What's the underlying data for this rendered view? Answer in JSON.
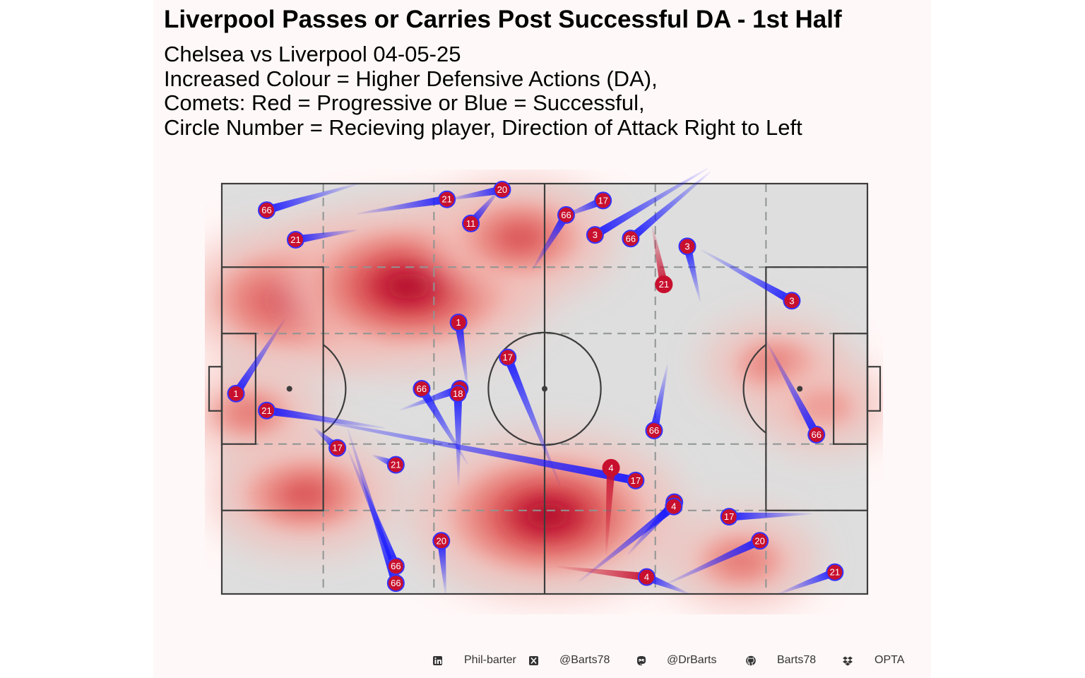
{
  "title": "Liverpool Passes or Carries Post Successful DA - 1st Half",
  "subtitle_lines": [
    "Chelsea vs Liverpool 04-05-25",
    "Increased Colour = Higher Defensive Actions (DA),",
    "Comets: Red = Progressive or Blue = Successful,",
    "Circle Number = Recieving player, Direction of Attack Right to Left"
  ],
  "caption": {
    "linkedin": "Phil-barter",
    "x": "@Barts78",
    "mastodon": "@DrBarts",
    "github": "Barts78",
    "source": "OPTA"
  },
  "colors": {
    "panel": "#fff8f8",
    "pitch": "#dedede",
    "density_low": "#f2b6b0",
    "density_high": "#b5112f",
    "comet_successful": "#1a1aff",
    "comet_progressive": "#c8102e",
    "receiver_fill": "#c8102e",
    "receiver_ring": "#3333ff"
  },
  "chart_data": {
    "type": "scatter",
    "pitch": {
      "length": 105,
      "width": 68,
      "direction_of_attack": "right-to-left"
    },
    "density_hotspots": [
      {
        "x": 12.0,
        "y": 48.7,
        "level": 0.8
      },
      {
        "x": 30.4,
        "y": 51.0,
        "level": 1.0
      },
      {
        "x": 53.0,
        "y": 13.0,
        "level": 1.0
      },
      {
        "x": 13.5,
        "y": 16.5,
        "level": 0.55
      },
      {
        "x": 48.5,
        "y": 59.0,
        "level": 0.55
      },
      {
        "x": 84.5,
        "y": 5.5,
        "level": 0.35
      },
      {
        "x": 90.0,
        "y": 38.0,
        "level": 0.3
      },
      {
        "x": 98.0,
        "y": 31.0,
        "level": 0.25
      },
      {
        "x": 4.5,
        "y": 30.0,
        "level": 0.3
      }
    ],
    "comets": [
      {
        "receiver": "66",
        "type": "successful",
        "x": 7.3,
        "y": 63.6,
        "end_x": 22.3,
        "end_y": 68.0
      },
      {
        "receiver": "21",
        "type": "successful",
        "x": 12.0,
        "y": 58.7,
        "end_x": 22.0,
        "end_y": 60.3
      },
      {
        "receiver": "21",
        "type": "successful",
        "x": 36.6,
        "y": 65.4,
        "end_x": 22.0,
        "end_y": 63.0
      },
      {
        "receiver": "20",
        "type": "successful",
        "x": 45.6,
        "y": 67.0,
        "end_x": 36.6,
        "end_y": 65.3
      },
      {
        "receiver": "11",
        "type": "successful",
        "x": 40.5,
        "y": 61.4,
        "end_x": 45.2,
        "end_y": 67.0
      },
      {
        "receiver": "17",
        "type": "successful",
        "x": 62.0,
        "y": 65.2,
        "end_x": 55.0,
        "end_y": 62.3
      },
      {
        "receiver": "66",
        "type": "successful",
        "x": 56.0,
        "y": 62.8,
        "end_x": 50.5,
        "end_y": 53.7
      },
      {
        "receiver": "3",
        "type": "successful",
        "x": 60.7,
        "y": 59.5,
        "end_x": 79.0,
        "end_y": 70.5
      },
      {
        "receiver": "66",
        "type": "successful",
        "x": 66.5,
        "y": 58.9,
        "end_x": 79.5,
        "end_y": 70.0
      },
      {
        "receiver": "3",
        "type": "successful",
        "x": 75.7,
        "y": 57.6,
        "end_x": 77.8,
        "end_y": 48.5
      },
      {
        "receiver": "21",
        "type": "progressive",
        "x": 71.9,
        "y": 51.3,
        "end_x": 70.0,
        "end_y": 61.0
      },
      {
        "receiver": "3",
        "type": "successful",
        "x": 92.7,
        "y": 48.6,
        "end_x": 78.0,
        "end_y": 57.0
      },
      {
        "receiver": "1",
        "type": "successful",
        "x": 2.3,
        "y": 33.2,
        "end_x": 10.3,
        "end_y": 45.6
      },
      {
        "receiver": "21",
        "type": "successful",
        "x": 7.3,
        "y": 30.4,
        "end_x": 26.5,
        "end_y": 27.5
      },
      {
        "receiver": "17",
        "type": "successful",
        "x": 18.8,
        "y": 24.2,
        "end_x": 15.0,
        "end_y": 27.5
      },
      {
        "receiver": "21",
        "type": "successful",
        "x": 28.3,
        "y": 21.4,
        "end_x": 24.5,
        "end_y": 23.0
      },
      {
        "receiver": "66",
        "type": "successful",
        "x": 28.3,
        "y": 1.8,
        "end_x": 20.5,
        "end_y": 27.3
      },
      {
        "receiver": "66",
        "type": "successful",
        "x": 32.5,
        "y": 34.0,
        "end_x": 40.0,
        "end_y": 21.5
      },
      {
        "receiver": "1",
        "type": "successful",
        "x": 38.7,
        "y": 34.0,
        "end_x": 29.0,
        "end_y": 30.5
      },
      {
        "receiver": "18",
        "type": "successful",
        "x": 38.4,
        "y": 33.2,
        "end_x": 38.5,
        "end_y": 18.0
      },
      {
        "receiver": "1",
        "type": "successful",
        "x": 38.5,
        "y": 45.0,
        "end_x": 40.0,
        "end_y": 34.0
      },
      {
        "receiver": "17",
        "type": "successful",
        "x": 46.5,
        "y": 39.2,
        "end_x": 55.0,
        "end_y": 18.0
      },
      {
        "receiver": "17",
        "type": "successful",
        "x": 67.3,
        "y": 18.8,
        "end_x": 7.3,
        "end_y": 30.4
      },
      {
        "receiver": "4",
        "type": "progressive",
        "x": 63.3,
        "y": 20.9,
        "end_x": 62.5,
        "end_y": 6.5
      },
      {
        "receiver": "66",
        "type": "successful",
        "x": 70.3,
        "y": 27.1,
        "end_x": 72.5,
        "end_y": 38.0
      },
      {
        "receiver": "66",
        "type": "successful",
        "x": 96.7,
        "y": 26.4,
        "end_x": 88.5,
        "end_y": 42.0
      },
      {
        "receiver": "66",
        "type": "successful",
        "x": 73.6,
        "y": 15.2,
        "end_x": 66.0,
        "end_y": 6.5
      },
      {
        "receiver": "4",
        "type": "successful",
        "x": 73.5,
        "y": 14.5,
        "end_x": 58.0,
        "end_y": 2.0
      },
      {
        "receiver": "17",
        "type": "successful",
        "x": 82.5,
        "y": 12.8,
        "end_x": 96.0,
        "end_y": 13.3
      },
      {
        "receiver": "20",
        "type": "successful",
        "x": 87.5,
        "y": 8.8,
        "end_x": 72.0,
        "end_y": 1.5
      },
      {
        "receiver": "20",
        "type": "successful",
        "x": 35.7,
        "y": 8.8,
        "end_x": 36.4,
        "end_y": 0.0
      },
      {
        "receiver": "66",
        "type": "successful",
        "x": 28.3,
        "y": 4.6,
        "end_x": 20.5,
        "end_y": 24.0
      },
      {
        "receiver": "4",
        "type": "progressive",
        "x": 69.1,
        "y": 2.8,
        "end_x": 54.5,
        "end_y": 4.5
      },
      {
        "receiver": "4",
        "type": "successful",
        "x": 69.1,
        "y": 2.8,
        "end_x": 76.0,
        "end_y": 0.0
      },
      {
        "receiver": "21",
        "type": "successful",
        "x": 99.7,
        "y": 3.6,
        "end_x": 90.5,
        "end_y": 0.0
      }
    ]
  }
}
